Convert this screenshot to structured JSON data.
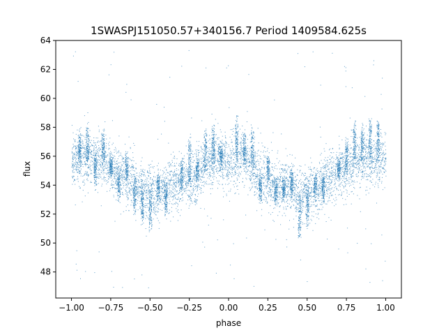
{
  "chart_data": {
    "type": "scatter",
    "title": "1SWASPJ151050.57+340156.7 Period 1409584.625s",
    "xlabel": "phase",
    "ylabel": "flux",
    "xlim": [
      -1.1,
      1.1
    ],
    "ylim": [
      46.2,
      64.0
    ],
    "xticks": [
      -1.0,
      -0.75,
      -0.5,
      -0.25,
      0.0,
      0.25,
      0.5,
      0.75,
      1.0
    ],
    "xtick_labels": [
      "−1.00",
      "−0.75",
      "−0.50",
      "−0.25",
      "0.00",
      "0.25",
      "0.50",
      "0.75",
      "1.00"
    ],
    "yticks": [
      48,
      50,
      52,
      54,
      56,
      58,
      60,
      62,
      64
    ],
    "ytick_labels": [
      "48",
      "50",
      "52",
      "54",
      "56",
      "58",
      "60",
      "62",
      "64"
    ],
    "grid": false,
    "legend": "none",
    "point_color": "#1f77b4",
    "series": [
      {
        "trend_phase": [
          0.0,
          0.08,
          0.12,
          0.18,
          0.22,
          0.27,
          0.33,
          0.38,
          0.42,
          0.46,
          0.5,
          0.55,
          0.6,
          0.65,
          0.7,
          0.75,
          0.8,
          0.85,
          0.9,
          0.95,
          1.0
        ],
        "trend_flux": [
          55.5,
          56.0,
          55.5,
          54.8,
          54.4,
          54.3,
          54.0,
          54.0,
          53.6,
          53.3,
          53.6,
          53.5,
          54.3,
          54.6,
          54.9,
          55.1,
          55.8,
          55.7,
          55.8,
          55.9,
          55.7
        ],
        "segment_centers": [
          -0.95,
          -0.9,
          -0.85,
          -0.8,
          -0.75,
          -0.7,
          -0.65,
          -0.6,
          -0.55,
          -0.5,
          -0.45,
          -0.4,
          -0.3,
          -0.25,
          -0.2,
          -0.15,
          -0.1,
          -0.05,
          0.05,
          0.1,
          0.15,
          0.2,
          0.25,
          0.3,
          0.35,
          0.4,
          0.45,
          0.5,
          0.55,
          0.6,
          0.7,
          0.75,
          0.8,
          0.85,
          0.9,
          0.95
        ],
        "segment_offsets": [
          1.5,
          2.0,
          -1.2,
          1.7,
          0.5,
          -1.6,
          1.2,
          -2.0,
          -1.8,
          -2.5,
          1.0,
          -1.4,
          1.3,
          2.8,
          1.0,
          2.3,
          2.0,
          0.5,
          2.5,
          1.5,
          2.4,
          -1.4,
          1.5,
          -1.2,
          -0.5,
          1.0,
          -2.8,
          -2.0,
          0.8,
          -1.0,
          0.5,
          1.8,
          2.3,
          2.0,
          2.6,
          2.3
        ],
        "outlier_range": [
          46.9,
          63.4
        ]
      }
    ]
  }
}
